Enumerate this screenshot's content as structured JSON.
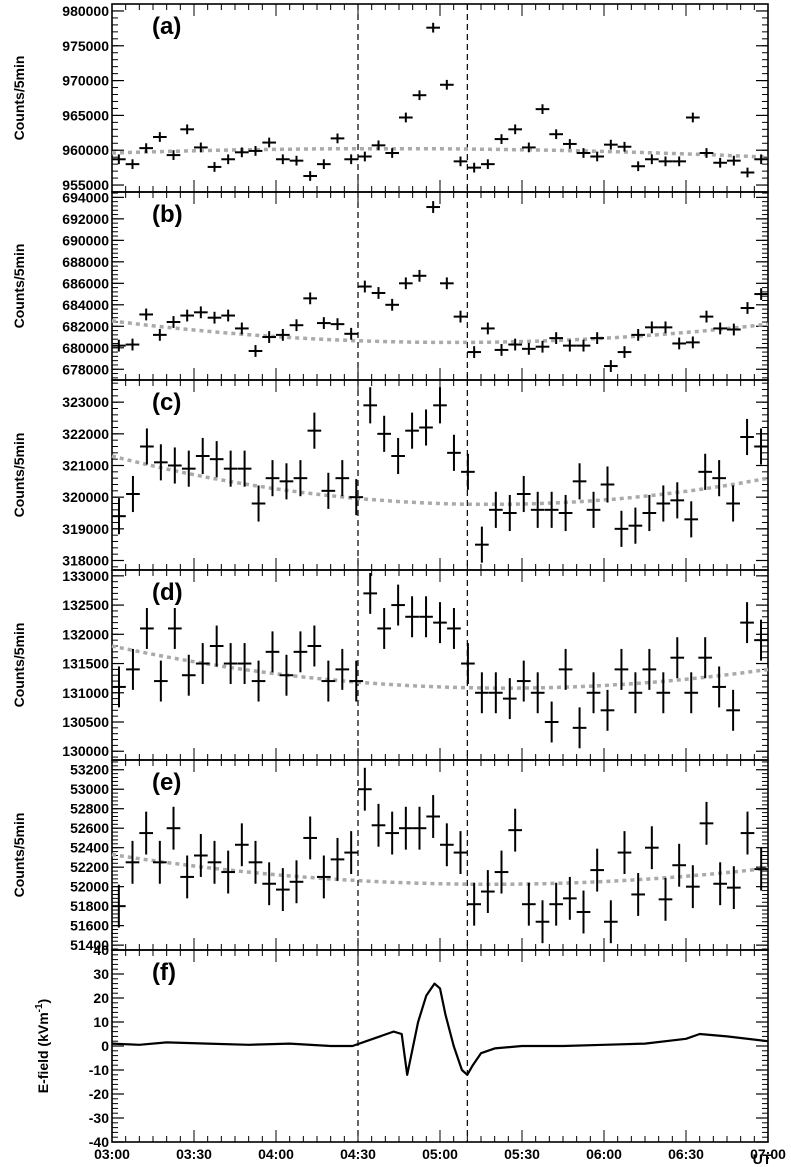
{
  "chart_data": {
    "type": "scatter",
    "x_axis": {
      "start": "03:00",
      "end": "07:00",
      "tick_labels": [
        "03:00",
        "03:30",
        "04:00",
        "04:30",
        "05:00",
        "05:30",
        "06:00",
        "06:30",
        "07:00"
      ],
      "unit_label": "UT"
    },
    "vertical_markers": [
      "04:30",
      "05:10"
    ],
    "bin_minutes": 5,
    "panels": [
      {
        "label": "(a)",
        "ylabel": "Counts/5min",
        "ylim": [
          954000,
          981000
        ],
        "yticks": [
          955000,
          960000,
          965000,
          970000,
          975000,
          980000
        ],
        "y_error": 700,
        "fit": [
          959600,
          960200,
          959000
        ],
        "values": [
          958700,
          958000,
          960300,
          961900,
          959300,
          963000,
          960400,
          957600,
          958700,
          959700,
          959900,
          961100,
          958700,
          958500,
          956300,
          958000,
          961700,
          958700,
          959100,
          960700,
          959600,
          964700,
          967900,
          977600,
          969400,
          958400,
          957500,
          958000,
          961600,
          963000,
          960400,
          965900,
          962300,
          960900,
          959600,
          959100,
          960800,
          960500,
          957700,
          958700,
          958400,
          958400,
          964700,
          959600,
          958200,
          958500,
          956800,
          958700
        ]
      },
      {
        "label": "(b)",
        "ylabel": "Counts/5min",
        "ylim": [
          677000,
          694500
        ],
        "yticks": [
          678000,
          680000,
          682000,
          684000,
          686000,
          688000,
          690000,
          692000,
          694000
        ],
        "y_error": 550,
        "fit": [
          682500,
          680500,
          682200
        ],
        "values": [
          680200,
          680300,
          683100,
          681200,
          682400,
          683000,
          683300,
          682800,
          683000,
          681800,
          679700,
          681000,
          681200,
          682100,
          684600,
          682300,
          682200,
          681300,
          685700,
          685100,
          684000,
          686000,
          686700,
          693100,
          686000,
          682900,
          679600,
          681800,
          679800,
          680300,
          679900,
          680100,
          680900,
          680200,
          680200,
          680900,
          678300,
          679600,
          681200,
          681900,
          681900,
          680400,
          680500,
          682900,
          681800,
          681700,
          683700,
          685000
        ]
      },
      {
        "label": "(c)",
        "ylabel": "Counts/5min",
        "ylim": [
          317700,
          323700
        ],
        "yticks": [
          318000,
          319000,
          320000,
          321000,
          322000,
          323000
        ],
        "y_error": 570,
        "fit": [
          321300,
          319800,
          320600
        ],
        "values": [
          319400,
          320100,
          321600,
          321100,
          321000,
          320900,
          321300,
          321200,
          320900,
          320900,
          319800,
          320600,
          320500,
          320600,
          322100,
          320200,
          320600,
          320000,
          322900,
          322000,
          321300,
          322100,
          322200,
          322900,
          321400,
          320800,
          318500,
          319600,
          319500,
          320100,
          319600,
          319600,
          319500,
          320500,
          319600,
          320400,
          319000,
          319100,
          319500,
          319800,
          319900,
          319300,
          320800,
          320600,
          319800,
          321900,
          321600
        ]
      },
      {
        "label": "(d)",
        "ylabel": "Counts/5min",
        "ylim": [
          129850,
          133100
        ],
        "yticks": [
          130000,
          130500,
          131000,
          131500,
          132000,
          132500,
          133000
        ],
        "y_error": 350,
        "fit": [
          131800,
          131100,
          131400
        ],
        "values": [
          131100,
          131400,
          132100,
          131200,
          132100,
          131300,
          131500,
          131800,
          131500,
          131500,
          131200,
          131700,
          131300,
          131700,
          131800,
          131200,
          131400,
          131200,
          132700,
          132100,
          132500,
          132300,
          132300,
          132200,
          132100,
          131500,
          131000,
          131000,
          130900,
          131200,
          131000,
          130500,
          131400,
          130400,
          131000,
          130700,
          131400,
          131000,
          131400,
          131000,
          131600,
          131000,
          131600,
          131100,
          130700,
          132200,
          131900
        ]
      },
      {
        "label": "(e)",
        "ylabel": "Counts/5min",
        "ylim": [
          51350,
          53300
        ],
        "yticks": [
          51400,
          51600,
          51800,
          52000,
          52200,
          52400,
          52600,
          52800,
          53000,
          53200
        ],
        "y_error": 220,
        "fit": [
          52330,
          52030,
          52190
        ],
        "values": [
          51800,
          52250,
          52550,
          52250,
          52600,
          52100,
          52320,
          52250,
          52150,
          52430,
          52250,
          52030,
          51970,
          52050,
          52500,
          52100,
          52280,
          52350,
          53000,
          52630,
          52550,
          52600,
          52600,
          52720,
          52430,
          52350,
          51820,
          51950,
          52150,
          52580,
          51820,
          51640,
          51820,
          51880,
          51740,
          52170,
          51640,
          52350,
          51920,
          52400,
          51870,
          52220,
          52000,
          52650,
          52030,
          51990,
          52550,
          52180
        ]
      },
      {
        "label": "(f)",
        "ylabel": "E-field (kVm",
        "ylabel_sup": "-1",
        "ylabel_close": ")",
        "ylim": [
          -40,
          40
        ],
        "yticks": [
          -40,
          -30,
          -20,
          -10,
          0,
          10,
          20,
          30,
          40
        ],
        "trace_points": [
          [
            "03:00",
            1
          ],
          [
            "03:10",
            0.5
          ],
          [
            "03:20",
            1.5
          ],
          [
            "03:35",
            1
          ],
          [
            "03:50",
            0.5
          ],
          [
            "04:05",
            1
          ],
          [
            "04:20",
            0
          ],
          [
            "04:28",
            0
          ],
          [
            "04:33",
            2
          ],
          [
            "04:38",
            4
          ],
          [
            "04:43",
            6
          ],
          [
            "04:46",
            5
          ],
          [
            "04:48",
            -12
          ],
          [
            "04:52",
            10
          ],
          [
            "04:55",
            21
          ],
          [
            "04:58",
            26
          ],
          [
            "05:00",
            24
          ],
          [
            "05:02",
            13
          ],
          [
            "05:05",
            0
          ],
          [
            "05:08",
            -10
          ],
          [
            "05:10",
            -12
          ],
          [
            "05:12",
            -8
          ],
          [
            "05:15",
            -3
          ],
          [
            "05:20",
            -1
          ],
          [
            "05:30",
            0
          ],
          [
            "05:45",
            0
          ],
          [
            "06:00",
            0.5
          ],
          [
            "06:15",
            1
          ],
          [
            "06:30",
            3
          ],
          [
            "06:35",
            5
          ],
          [
            "06:45",
            4
          ],
          [
            "07:00",
            2
          ]
        ]
      }
    ]
  }
}
